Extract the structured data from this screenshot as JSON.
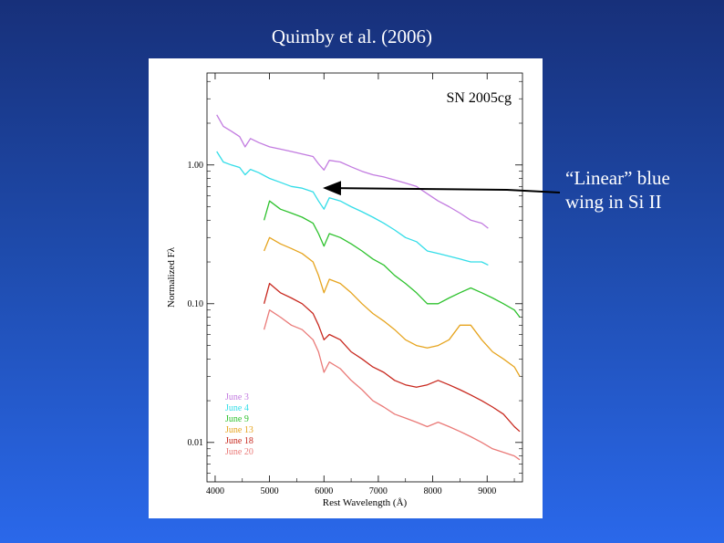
{
  "slide": {
    "title": "Quimby et al. (2006)",
    "annotation": {
      "line1": "“Linear” blue",
      "line2": "wing in Si II"
    }
  },
  "chart_data": {
    "type": "line",
    "title": "SN 2005cg",
    "xlabel": "Rest Wavelength (Å)",
    "ylabel": "Normalized Fλ",
    "xlim": [
      3850,
      9650
    ],
    "ylim": [
      0.0052,
      4.6
    ],
    "yscale": "log",
    "grid": false,
    "legend_position": "bottom-left",
    "x_ticks": [
      {
        "value": 4000,
        "label": "4000"
      },
      {
        "value": 5000,
        "label": "5000"
      },
      {
        "value": 6000,
        "label": "6000"
      },
      {
        "value": 7000,
        "label": "7000"
      },
      {
        "value": 8000,
        "label": "8000"
      },
      {
        "value": 9000,
        "label": "9000"
      }
    ],
    "y_ticks": [
      {
        "value": 1.0,
        "label": "1.00"
      },
      {
        "value": 0.1,
        "label": "0.10"
      },
      {
        "value": 0.01,
        "label": "0.01"
      }
    ],
    "series": [
      {
        "name": "June 3",
        "color": "#c27be0",
        "x": [
          4030,
          4150,
          4300,
          4450,
          4550,
          4650,
          4800,
          5000,
          5200,
          5400,
          5600,
          5800,
          5900,
          6000,
          6100,
          6300,
          6500,
          6700,
          6900,
          7100,
          7300,
          7500,
          7700,
          7900,
          8100,
          8300,
          8500,
          8700,
          8900,
          9020
        ],
        "y": [
          2.3,
          1.9,
          1.75,
          1.6,
          1.35,
          1.55,
          1.45,
          1.35,
          1.3,
          1.25,
          1.2,
          1.15,
          1.02,
          0.92,
          1.08,
          1.05,
          0.97,
          0.9,
          0.85,
          0.82,
          0.78,
          0.74,
          0.7,
          0.62,
          0.55,
          0.5,
          0.45,
          0.4,
          0.38,
          0.35
        ]
      },
      {
        "name": "June 4",
        "color": "#33dde8",
        "x": [
          4030,
          4150,
          4300,
          4450,
          4550,
          4650,
          4800,
          5000,
          5200,
          5400,
          5600,
          5800,
          5900,
          6000,
          6100,
          6300,
          6500,
          6700,
          6900,
          7100,
          7300,
          7500,
          7700,
          7900,
          8100,
          8300,
          8500,
          8700,
          8900,
          9020
        ],
        "y": [
          1.25,
          1.05,
          1.0,
          0.96,
          0.85,
          0.93,
          0.88,
          0.8,
          0.75,
          0.7,
          0.68,
          0.64,
          0.55,
          0.48,
          0.58,
          0.55,
          0.5,
          0.46,
          0.42,
          0.38,
          0.34,
          0.3,
          0.28,
          0.24,
          0.23,
          0.22,
          0.21,
          0.2,
          0.2,
          0.19
        ]
      },
      {
        "name": "June 9",
        "color": "#2ec22e",
        "x": [
          4900,
          5000,
          5200,
          5400,
          5600,
          5800,
          5900,
          6000,
          6100,
          6300,
          6500,
          6700,
          6900,
          7100,
          7300,
          7500,
          7700,
          7900,
          8100,
          8300,
          8500,
          8700,
          8900,
          9100,
          9300,
          9500,
          9600
        ],
        "y": [
          0.4,
          0.55,
          0.48,
          0.45,
          0.42,
          0.38,
          0.32,
          0.26,
          0.32,
          0.3,
          0.27,
          0.24,
          0.21,
          0.19,
          0.16,
          0.14,
          0.12,
          0.1,
          0.1,
          0.11,
          0.12,
          0.13,
          0.12,
          0.11,
          0.1,
          0.09,
          0.08
        ]
      },
      {
        "name": "June 13",
        "color": "#e6a41e",
        "x": [
          4900,
          5000,
          5200,
          5400,
          5600,
          5800,
          5900,
          6000,
          6100,
          6300,
          6500,
          6700,
          6900,
          7100,
          7300,
          7500,
          7700,
          7900,
          8100,
          8300,
          8500,
          8700,
          8900,
          9100,
          9300,
          9500,
          9600
        ],
        "y": [
          0.24,
          0.3,
          0.27,
          0.25,
          0.23,
          0.2,
          0.16,
          0.12,
          0.15,
          0.14,
          0.12,
          0.1,
          0.085,
          0.075,
          0.065,
          0.055,
          0.05,
          0.048,
          0.05,
          0.055,
          0.07,
          0.07,
          0.055,
          0.045,
          0.04,
          0.035,
          0.03
        ]
      },
      {
        "name": "June 18",
        "color": "#c8281e",
        "x": [
          4900,
          5000,
          5200,
          5400,
          5600,
          5800,
          5900,
          6000,
          6100,
          6300,
          6500,
          6700,
          6900,
          7100,
          7300,
          7500,
          7700,
          7900,
          8100,
          8300,
          8500,
          8700,
          8900,
          9100,
          9300,
          9500,
          9600
        ],
        "y": [
          0.1,
          0.14,
          0.12,
          0.11,
          0.1,
          0.085,
          0.07,
          0.055,
          0.06,
          0.055,
          0.045,
          0.04,
          0.035,
          0.032,
          0.028,
          0.026,
          0.025,
          0.026,
          0.028,
          0.026,
          0.024,
          0.022,
          0.02,
          0.018,
          0.016,
          0.013,
          0.012
        ]
      },
      {
        "name": "June 20",
        "color": "#ea7a78",
        "x": [
          4900,
          5000,
          5200,
          5400,
          5600,
          5800,
          5900,
          6000,
          6100,
          6300,
          6500,
          6700,
          6900,
          7100,
          7300,
          7500,
          7700,
          7900,
          8100,
          8300,
          8500,
          8700,
          8900,
          9100,
          9300,
          9500,
          9600
        ],
        "y": [
          0.065,
          0.09,
          0.08,
          0.07,
          0.065,
          0.055,
          0.045,
          0.032,
          0.038,
          0.034,
          0.028,
          0.024,
          0.02,
          0.018,
          0.016,
          0.015,
          0.014,
          0.013,
          0.014,
          0.013,
          0.012,
          0.011,
          0.01,
          0.009,
          0.0085,
          0.008,
          0.0075
        ]
      }
    ]
  }
}
